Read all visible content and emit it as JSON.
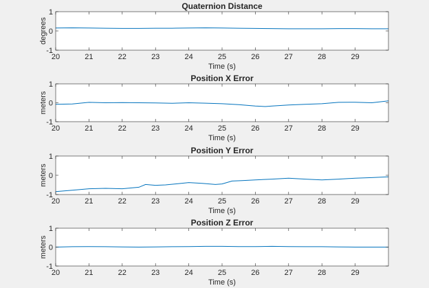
{
  "figure": {
    "background": "#f0f0f0",
    "axes_background": "#ffffff",
    "line_color": "#0072bd",
    "axis_color": "#262626"
  },
  "chart_data": [
    {
      "type": "line",
      "title": "Quaternion Distance",
      "xlabel": "Time (s)",
      "ylabel": "degrees",
      "xlim": [
        20,
        30
      ],
      "ylim": [
        -1,
        1
      ],
      "xticks": [
        "20",
        "21",
        "22",
        "23",
        "24",
        "25",
        "26",
        "27",
        "28",
        "29"
      ],
      "yticks": [
        "-1",
        "0",
        "1"
      ],
      "grid": false,
      "series": [
        {
          "x": [
            20,
            20.5,
            21,
            21.5,
            22,
            22.5,
            23,
            23.5,
            24,
            24.5,
            25,
            25.5,
            26,
            26.5,
            27,
            27.5,
            28,
            28.5,
            29,
            29.5,
            30
          ],
          "y": [
            0.15,
            0.16,
            0.15,
            0.14,
            0.13,
            0.13,
            0.14,
            0.14,
            0.15,
            0.16,
            0.15,
            0.14,
            0.13,
            0.12,
            0.11,
            0.11,
            0.11,
            0.12,
            0.12,
            0.11,
            0.11
          ]
        }
      ]
    },
    {
      "type": "line",
      "title": "Position X Error",
      "xlabel": "Time (s)",
      "ylabel": "meters",
      "xlim": [
        20,
        30
      ],
      "ylim": [
        -1,
        1
      ],
      "xticks": [
        "20",
        "21",
        "22",
        "23",
        "24",
        "25",
        "26",
        "27",
        "28",
        "29"
      ],
      "yticks": [
        "-1",
        "0",
        "1"
      ],
      "grid": false,
      "series": [
        {
          "x": [
            20,
            20.5,
            21,
            21.5,
            22,
            22.5,
            23,
            23.5,
            24,
            24.5,
            25,
            25.5,
            26,
            26.3,
            26.5,
            27,
            27.5,
            28,
            28.5,
            29,
            29.5,
            30
          ],
          "y": [
            -0.08,
            -0.06,
            0.02,
            0.0,
            0.01,
            0.0,
            -0.01,
            -0.03,
            0.0,
            -0.02,
            -0.05,
            -0.1,
            -0.17,
            -0.2,
            -0.17,
            -0.12,
            -0.08,
            -0.05,
            0.02,
            0.03,
            0.0,
            0.1
          ]
        }
      ]
    },
    {
      "type": "line",
      "title": "Position Y Error",
      "xlabel": "Time (s)",
      "ylabel": "meters",
      "xlim": [
        20,
        30
      ],
      "ylim": [
        -1,
        1
      ],
      "xticks": [
        "20",
        "21",
        "22",
        "23",
        "24",
        "25",
        "26",
        "27",
        "28",
        "29"
      ],
      "yticks": [
        "-1",
        "0",
        "1"
      ],
      "grid": false,
      "series": [
        {
          "x": [
            20,
            20.5,
            21,
            21.5,
            22,
            22.5,
            22.7,
            23,
            23.3,
            23.6,
            24,
            24.4,
            24.8,
            25,
            25.3,
            25.6,
            26,
            26.5,
            27,
            27.5,
            28,
            28.5,
            29,
            29.5,
            30
          ],
          "y": [
            -0.85,
            -0.78,
            -0.7,
            -0.68,
            -0.7,
            -0.62,
            -0.48,
            -0.52,
            -0.5,
            -0.45,
            -0.38,
            -0.42,
            -0.48,
            -0.45,
            -0.3,
            -0.28,
            -0.24,
            -0.2,
            -0.15,
            -0.2,
            -0.24,
            -0.2,
            -0.15,
            -0.12,
            -0.08
          ]
        }
      ]
    },
    {
      "type": "line",
      "title": "Position Z Error",
      "xlabel": "Time (s)",
      "ylabel": "meters",
      "xlim": [
        20,
        30
      ],
      "ylim": [
        -1,
        1
      ],
      "xticks": [
        "20",
        "21",
        "22",
        "23",
        "24",
        "25",
        "26",
        "27",
        "28",
        "29"
      ],
      "yticks": [
        "-1",
        "0",
        "1"
      ],
      "grid": false,
      "series": [
        {
          "x": [
            20,
            20.5,
            21,
            21.5,
            22,
            22.5,
            23,
            23.5,
            24,
            24.5,
            25,
            25.5,
            26,
            26.5,
            27,
            27.5,
            28,
            28.5,
            29,
            29.5,
            30
          ],
          "y": [
            0.0,
            0.02,
            0.03,
            0.02,
            0.01,
            0.0,
            0.01,
            0.02,
            0.03,
            0.04,
            0.04,
            0.03,
            0.03,
            0.04,
            0.03,
            0.02,
            0.02,
            0.01,
            0.0,
            0.0,
            0.0
          ]
        }
      ]
    }
  ]
}
